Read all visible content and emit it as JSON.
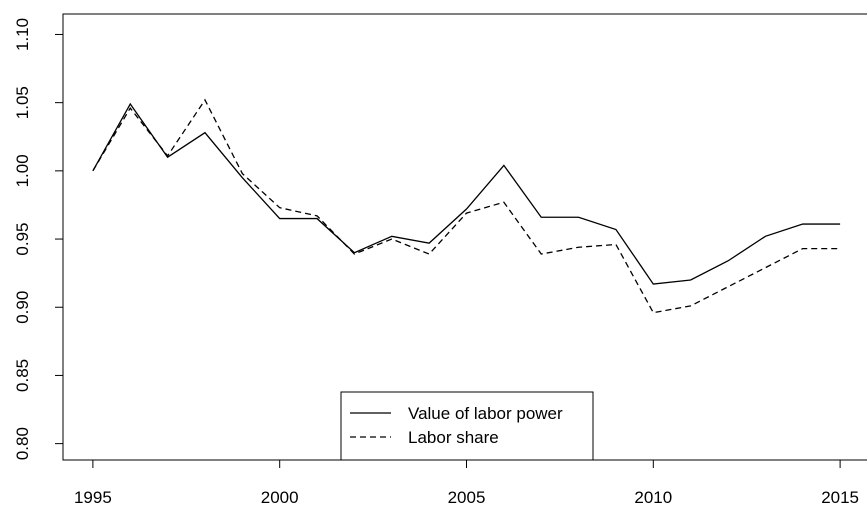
{
  "chart_data": {
    "type": "line",
    "x": [
      1995,
      1996,
      1997,
      1998,
      1999,
      2000,
      2001,
      2002,
      2003,
      2004,
      2005,
      2006,
      2007,
      2008,
      2009,
      2010,
      2011,
      2012,
      2013,
      2014,
      2015
    ],
    "series": [
      {
        "name": "Value of labor power",
        "color": "#000000",
        "dash": "solid",
        "values": [
          1.0,
          1.049,
          1.01,
          1.028,
          0.995,
          0.965,
          0.965,
          0.94,
          0.952,
          0.947,
          0.972,
          1.004,
          0.966,
          0.966,
          0.957,
          0.917,
          0.92,
          0.934,
          0.952,
          0.961,
          0.961
        ]
      },
      {
        "name": "Labor share",
        "color": "#000000",
        "dash": "dashed",
        "values": [
          1.0,
          1.046,
          1.011,
          1.052,
          0.998,
          0.973,
          0.967,
          0.939,
          0.95,
          0.939,
          0.969,
          0.977,
          0.939,
          0.944,
          0.946,
          0.896,
          0.901,
          0.915,
          0.929,
          0.943,
          0.943
        ]
      }
    ],
    "xlim": [
      1994.2,
      2015.8
    ],
    "xticks": [
      1995,
      2000,
      2005,
      2010,
      2015
    ],
    "ylim": [
      0.788,
      1.115
    ],
    "yticks": [
      {
        "value": 0.8,
        "label": "0.80"
      },
      {
        "value": 0.85,
        "label": "0.85"
      },
      {
        "value": 0.9,
        "label": "0.90"
      },
      {
        "value": 0.95,
        "label": "0.95"
      },
      {
        "value": 1.0,
        "label": "1.00"
      },
      {
        "value": 1.05,
        "label": "1.05"
      },
      {
        "value": 1.1,
        "label": "1.10"
      }
    ],
    "legend": "bottom"
  }
}
